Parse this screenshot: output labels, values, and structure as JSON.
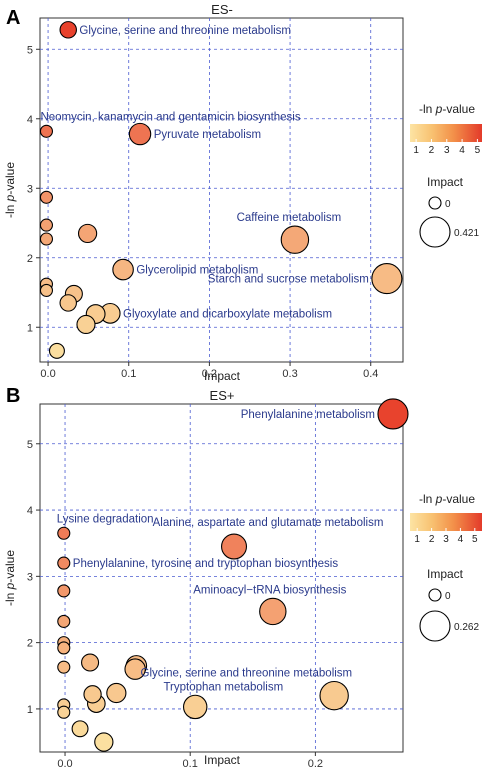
{
  "colors": {
    "low": "#fbe0a0",
    "high": "#e8412c",
    "grid": "#4a5bd1",
    "annotation": "#2a3a8c"
  },
  "chart_data": [
    {
      "panel_letter": "A",
      "type": "scatter",
      "title": "ES-",
      "xlabel": "Impact",
      "ylabel": "-ln p-value",
      "xlim": [
        -0.01,
        0.44
      ],
      "ylim": [
        0.5,
        5.45
      ],
      "xticks": [
        "0.0",
        "0.1",
        "0.2",
        "0.3",
        "0.4"
      ],
      "yticks": [
        "1",
        "2",
        "3",
        "4",
        "5"
      ],
      "xtick_values": [
        0,
        0.1,
        0.2,
        0.3,
        0.4
      ],
      "ytick_values": [
        1,
        2,
        3,
        4,
        5
      ],
      "grid": true,
      "color_legend": {
        "title_prefix": "-ln ",
        "title_italic": "p",
        "title_suffix": "-value",
        "range": [
          0.6,
          5.3
        ],
        "ticks": [
          "1",
          "2",
          "3",
          "4",
          "5"
        ],
        "tick_values": [
          1,
          2,
          3,
          4,
          5
        ]
      },
      "size_legend": {
        "title": "Impact",
        "labels": [
          "0",
          "0.421"
        ],
        "values": [
          0,
          0.421
        ]
      },
      "points": [
        {
          "x": 0.025,
          "y": 5.28,
          "impact": 0.025,
          "label": "Glycine, serine and threonine metabolism",
          "label_pos": "right"
        },
        {
          "x": -0.002,
          "y": 3.82,
          "impact": 0.0,
          "label": "Neomycin, kanamycin and gentamicin biosynthesis",
          "label_pos": "above-left"
        },
        {
          "x": 0.114,
          "y": 3.78,
          "impact": 0.114,
          "label": "Pyruvate metabolism",
          "label_pos": "right"
        },
        {
          "x": -0.002,
          "y": 2.87,
          "impact": 0.0
        },
        {
          "x": -0.002,
          "y": 2.47,
          "impact": 0.0
        },
        {
          "x": -0.002,
          "y": 2.27,
          "impact": 0.0
        },
        {
          "x": 0.049,
          "y": 2.35,
          "impact": 0.049
        },
        {
          "x": 0.306,
          "y": 2.26,
          "impact": 0.306,
          "label": "Caffeine metabolism",
          "label_pos": "above"
        },
        {
          "x": 0.093,
          "y": 1.83,
          "impact": 0.093,
          "label": "Glycerolipid metabolism",
          "label_pos": "right"
        },
        {
          "x": 0.42,
          "y": 1.7,
          "impact": 0.421,
          "label": "Starch and sucrose metabolism",
          "label_pos": "left"
        },
        {
          "x": -0.002,
          "y": 1.62,
          "impact": 0.0
        },
        {
          "x": -0.002,
          "y": 1.53,
          "impact": 0.0
        },
        {
          "x": 0.032,
          "y": 1.48,
          "impact": 0.032
        },
        {
          "x": 0.025,
          "y": 1.35,
          "impact": 0.025
        },
        {
          "x": 0.059,
          "y": 1.19,
          "impact": 0.059
        },
        {
          "x": 0.077,
          "y": 1.2,
          "impact": 0.077,
          "label": "Glyoxylate and dicarboxylate metabolism",
          "label_pos": "right"
        },
        {
          "x": 0.047,
          "y": 1.04,
          "impact": 0.047
        },
        {
          "x": 0.011,
          "y": 0.66,
          "impact": 0.011
        }
      ]
    },
    {
      "panel_letter": "B",
      "type": "scatter",
      "title": "ES+",
      "xlabel": "Impact",
      "ylabel": "-ln p-value",
      "xlim": [
        -0.02,
        0.27
      ],
      "ylim": [
        0.35,
        5.6
      ],
      "xticks": [
        "0.0",
        "0.1",
        "0.2"
      ],
      "yticks": [
        "1",
        "2",
        "3",
        "4",
        "5"
      ],
      "xtick_values": [
        0,
        0.1,
        0.2
      ],
      "ytick_values": [
        1,
        2,
        3,
        4,
        5
      ],
      "grid": true,
      "color_legend": {
        "title_prefix": "-ln ",
        "title_italic": "p",
        "title_suffix": "-value",
        "range": [
          0.5,
          5.5
        ],
        "ticks": [
          "1",
          "2",
          "3",
          "4",
          "5"
        ],
        "tick_values": [
          1,
          2,
          3,
          4,
          5
        ]
      },
      "size_legend": {
        "title": "Impact",
        "labels": [
          "0",
          "0.262"
        ],
        "values": [
          0,
          0.262
        ]
      },
      "points": [
        {
          "x": 0.262,
          "y": 5.45,
          "impact": 0.262,
          "label": "Phenylalanine metabolism",
          "label_pos": "left"
        },
        {
          "x": -0.001,
          "y": 3.65,
          "impact": 0.0,
          "label": "Lysine degradation",
          "label_pos": "above"
        },
        {
          "x": 0.135,
          "y": 3.45,
          "impact": 0.135,
          "label": "Alanine, aspartate and glutamate metabolism",
          "label_pos": "above"
        },
        {
          "x": -0.001,
          "y": 3.2,
          "impact": 0.0,
          "label": "Phenylalanine, tyrosine and tryptophan biosynthesis",
          "label_pos": "right"
        },
        {
          "x": -0.001,
          "y": 2.78,
          "impact": 0.0
        },
        {
          "x": 0.166,
          "y": 2.47,
          "impact": 0.166,
          "label": "Aminoacyl−tRNA biosynthesis",
          "label_pos": "above"
        },
        {
          "x": -0.001,
          "y": 2.32,
          "impact": 0.0
        },
        {
          "x": -0.001,
          "y": 2.0,
          "impact": 0.0
        },
        {
          "x": -0.001,
          "y": 1.92,
          "impact": 0.0
        },
        {
          "x": -0.001,
          "y": 1.63,
          "impact": 0.0
        },
        {
          "x": 0.02,
          "y": 1.7,
          "impact": 0.02
        },
        {
          "x": 0.057,
          "y": 1.65,
          "impact": 0.057
        },
        {
          "x": 0.056,
          "y": 1.6,
          "impact": 0.056
        },
        {
          "x": 0.041,
          "y": 1.24,
          "impact": 0.041
        },
        {
          "x": 0.022,
          "y": 1.22,
          "impact": 0.022
        },
        {
          "x": 0.215,
          "y": 1.2,
          "impact": 0.215,
          "label": "Glycine, serine and threonine metabolism",
          "label_pos": "above"
        },
        {
          "x": 0.025,
          "y": 1.08,
          "impact": 0.025
        },
        {
          "x": -0.001,
          "y": 1.06,
          "impact": 0.0
        },
        {
          "x": 0.104,
          "y": 1.03,
          "impact": 0.104,
          "label": "Tryptophan metabolism",
          "label_pos": "above-left"
        },
        {
          "x": -0.001,
          "y": 0.95,
          "impact": 0.0
        },
        {
          "x": 0.012,
          "y": 0.7,
          "impact": 0.012
        },
        {
          "x": 0.031,
          "y": 0.5,
          "impact": 0.031
        }
      ]
    }
  ]
}
